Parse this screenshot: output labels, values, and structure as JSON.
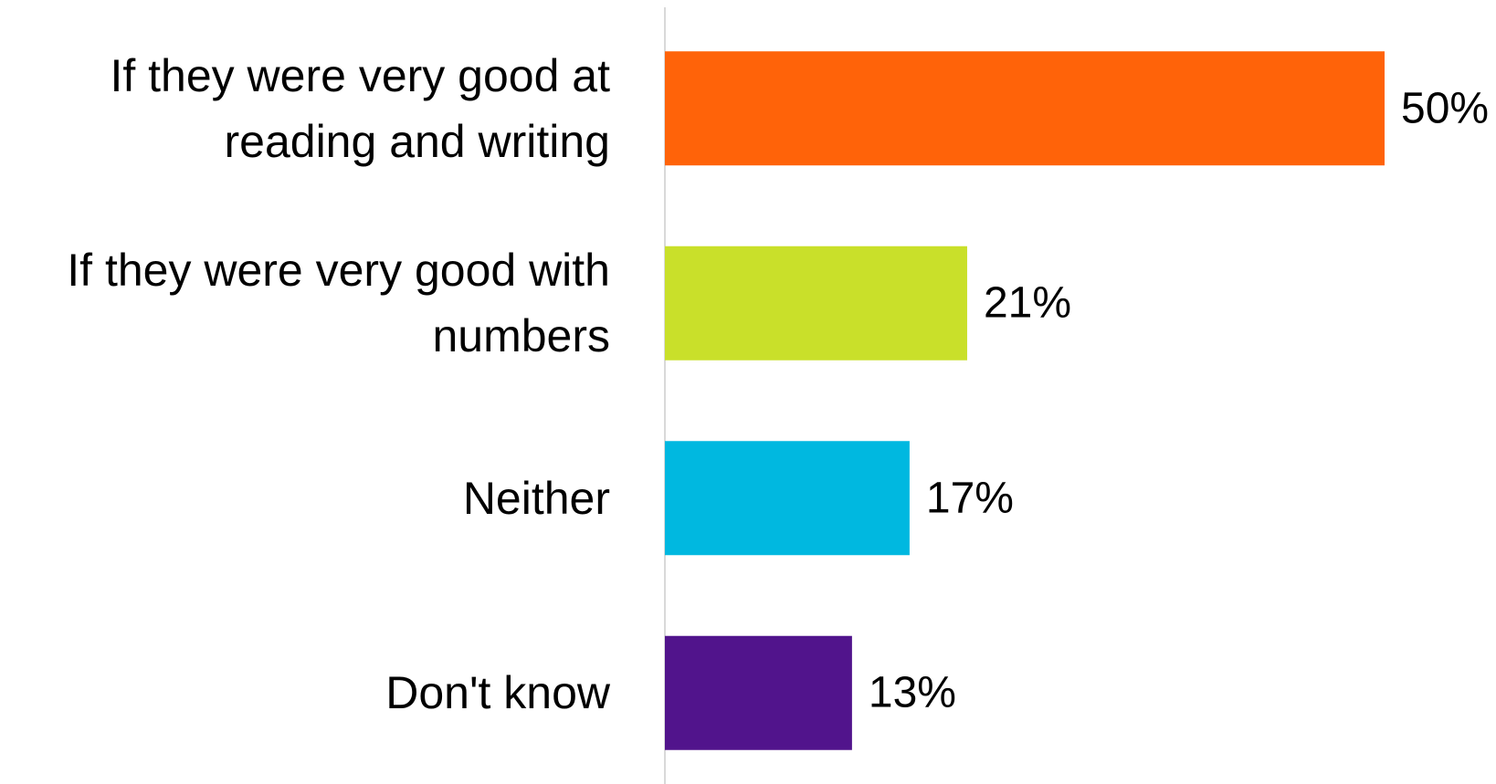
{
  "chart_data": {
    "type": "hbar",
    "categories": [
      "If they were very good at reading and writing",
      "If they were very good with numbers",
      "Neither",
      "Don't know"
    ],
    "values": [
      50,
      21,
      17,
      13
    ],
    "value_labels": [
      "50%",
      "21%",
      "17%",
      "13%"
    ],
    "colors": [
      "#ff6309",
      "#c9e02a",
      "#00b8e0",
      "#51148c"
    ]
  }
}
